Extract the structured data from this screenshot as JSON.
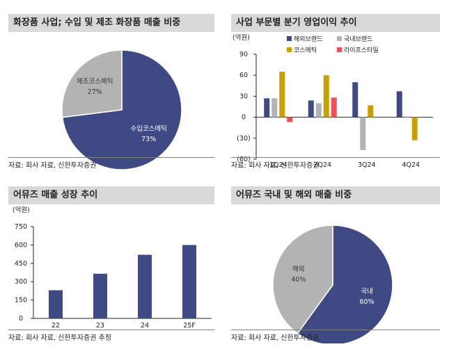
{
  "panels": [
    {
      "title": "화장품 사업; 수입 및 제조 화장품 매출 비중",
      "source": "자료: 회사 자료, 신한투자증권"
    },
    {
      "title": "사업 부문별 분기 영업이익 추이",
      "source": "자료: 회사 자료, 신한투자증권"
    },
    {
      "title": "어뮤즈 매출 성장 추이",
      "source": "자료: 회사 자료, 신한투자증권 추정"
    },
    {
      "title": "어뮤즈 국내 및 해외 매출 비중",
      "source": "자료: 회사 자료, 신한투자증권"
    }
  ],
  "chart_data": [
    {
      "type": "pie",
      "title": "화장품 사업; 수입 및 제조 화장품 매출 비중",
      "labels": [
        "수입코스메틱",
        "제조코스메틱"
      ],
      "values": [
        73,
        27
      ],
      "value_labels": [
        "73%",
        "27%"
      ],
      "colors": [
        "#3f4a85",
        "#b3b3b3"
      ],
      "label_colors": [
        "#ffffff",
        "#333333"
      ]
    },
    {
      "type": "bar",
      "title": "사업 부문별 분기 영업이익 추이",
      "unit_label": "(억원)",
      "categories": [
        "1Q24",
        "2Q24",
        "3Q24",
        "4Q24"
      ],
      "series": [
        {
          "name": "해외브랜드",
          "values": [
            27,
            24,
            50,
            37
          ],
          "color": "#3f4a85"
        },
        {
          "name": "국내브랜드",
          "values": [
            27,
            20,
            -47,
            1
          ],
          "color": "#b3b3b3"
        },
        {
          "name": "코스메틱",
          "values": [
            65,
            60,
            17,
            -33
          ],
          "color": "#c9a004"
        },
        {
          "name": "라이프스타일",
          "values": [
            -7,
            28,
            0,
            0
          ],
          "color": "#f1505a"
        }
      ],
      "ylim": [
        -60,
        90
      ],
      "yticks": [
        90,
        60,
        30,
        0,
        -30,
        -60
      ],
      "ytick_labels": [
        "90",
        "60",
        "30",
        "0",
        "(30)",
        "(60)"
      ],
      "grid": false,
      "legend": "top"
    },
    {
      "type": "bar",
      "title": "어뮤즈 매출 성장 추이",
      "unit_label": "(억원)",
      "categories": [
        "22",
        "23",
        "24",
        "25F"
      ],
      "values": [
        230,
        365,
        520,
        600
      ],
      "color": "#3f4a85",
      "ylim": [
        0,
        750
      ],
      "yticks": [
        750,
        600,
        450,
        300,
        150,
        0
      ],
      "ytick_labels": [
        "750",
        "600",
        "450",
        "300",
        "150",
        "0"
      ],
      "grid": false
    },
    {
      "type": "pie",
      "title": "어뮤즈 국내 및 해외 매출 비중",
      "labels": [
        "국내",
        "해외"
      ],
      "values": [
        60,
        40
      ],
      "value_labels": [
        "60%",
        "40%"
      ],
      "colors": [
        "#3f4a85",
        "#b3b3b3"
      ],
      "label_colors": [
        "#ffffff",
        "#333333"
      ]
    }
  ]
}
